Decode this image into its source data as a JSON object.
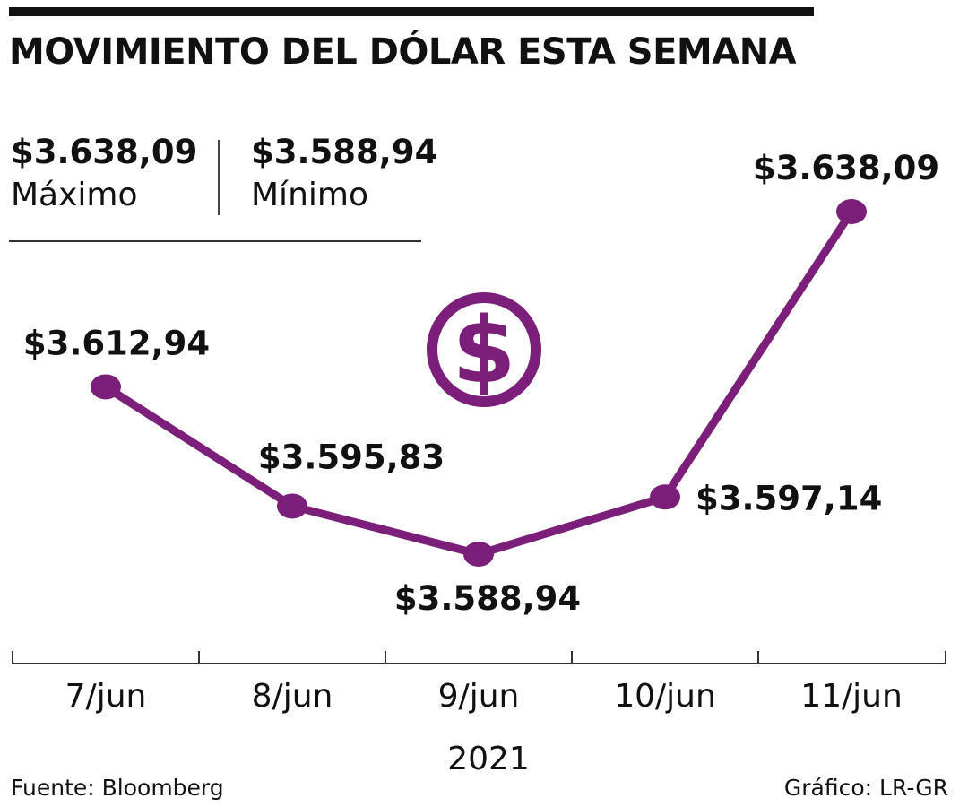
{
  "title": "MOVIMIENTO DEL DÓLAR ESTA SEMANA",
  "stats": {
    "max_value": "$3.638,09",
    "max_label": "Máximo",
    "min_value": "$3.588,94",
    "min_label": "Mínimo"
  },
  "icon": "dollar-coin-icon",
  "colors": {
    "line": "#7b1f7a",
    "text": "#111111"
  },
  "chart_data": {
    "type": "line",
    "x": [
      "7/jun",
      "8/jun",
      "9/jun",
      "10/jun",
      "11/jun"
    ],
    "xlabel": "2021",
    "series": [
      {
        "values": [
          3612.94,
          3595.83,
          3588.94,
          3597.14,
          3638.09
        ],
        "labels": [
          "$3.612,94",
          "$3.595,83",
          "$3.588,94",
          "$3.597,14",
          "$3.638,09"
        ]
      }
    ],
    "grid": false
  },
  "footer": {
    "source": "Fuente: Bloomberg",
    "credit": "Gráfico: LR-GR"
  }
}
